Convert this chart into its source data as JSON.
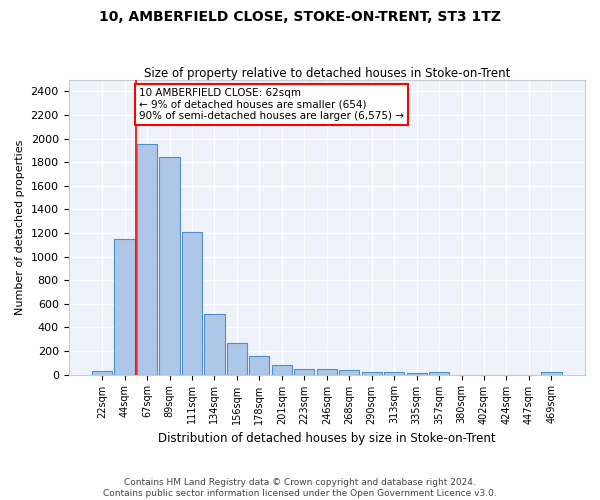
{
  "title": "10, AMBERFIELD CLOSE, STOKE-ON-TRENT, ST3 1TZ",
  "subtitle": "Size of property relative to detached houses in Stoke-on-Trent",
  "xlabel": "Distribution of detached houses by size in Stoke-on-Trent",
  "ylabel": "Number of detached properties",
  "categories": [
    "22sqm",
    "44sqm",
    "67sqm",
    "89sqm",
    "111sqm",
    "134sqm",
    "156sqm",
    "178sqm",
    "201sqm",
    "223sqm",
    "246sqm",
    "268sqm",
    "290sqm",
    "313sqm",
    "335sqm",
    "357sqm",
    "380sqm",
    "402sqm",
    "424sqm",
    "447sqm",
    "469sqm"
  ],
  "values": [
    30,
    1150,
    1950,
    1840,
    1210,
    515,
    265,
    155,
    80,
    50,
    45,
    40,
    22,
    20,
    15,
    25,
    0,
    0,
    0,
    0,
    20
  ],
  "bar_color": "#aec6e8",
  "bar_edge_color": "#5090c8",
  "background_color": "#eef2fb",
  "grid_color": "#ffffff",
  "ylim": [
    0,
    2500
  ],
  "yticks": [
    0,
    200,
    400,
    600,
    800,
    1000,
    1200,
    1400,
    1600,
    1800,
    2000,
    2200,
    2400
  ],
  "red_line_x": 1.5,
  "annotation_line1": "10 AMBERFIELD CLOSE: 62sqm",
  "annotation_line2": "← 9% of detached houses are smaller (654)",
  "annotation_line3": "90% of semi-detached houses are larger (6,575) →",
  "footnote1": "Contains HM Land Registry data © Crown copyright and database right 2024.",
  "footnote2": "Contains public sector information licensed under the Open Government Licence v3.0."
}
